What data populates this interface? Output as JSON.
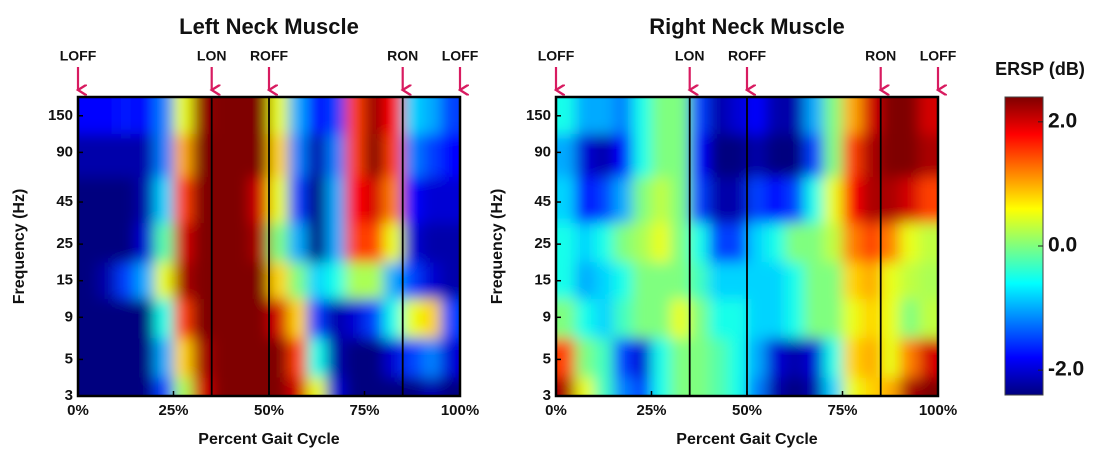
{
  "chart_data": [
    {
      "type": "heatmap",
      "title": "Left Neck Muscle",
      "xlabel": "Percent Gait Cycle",
      "ylabel": "Frequency (Hz)",
      "xlim": [
        0,
        100
      ],
      "ylim": [
        3,
        195
      ],
      "log_y": true,
      "xticks": [
        {
          "value": 0,
          "label": "0%"
        },
        {
          "value": 25,
          "label": "25%"
        },
        {
          "value": 50,
          "label": "50%"
        },
        {
          "value": 75,
          "label": "75%"
        },
        {
          "value": 100,
          "label": "100%"
        }
      ],
      "yticks": [
        3,
        5,
        9,
        15,
        25,
        45,
        90,
        150
      ],
      "events": [
        {
          "label": "LOFF",
          "x": 0
        },
        {
          "label": "LON",
          "x": 35
        },
        {
          "label": "ROFF",
          "x": 50
        },
        {
          "label": "RON",
          "x": 85
        },
        {
          "label": "LOFF",
          "x": 100
        }
      ],
      "x": [
        2.5,
        7.5,
        12.5,
        17.5,
        22.5,
        27.5,
        32.5,
        37.5,
        42.5,
        47.5,
        52.5,
        57.5,
        62.5,
        67.5,
        72.5,
        77.5,
        82.5,
        87.5,
        92.5,
        97.5
      ],
      "y": [
        150,
        90,
        45,
        25,
        15,
        9,
        5,
        3
      ],
      "z": [
        [
          -1.8,
          -1.8,
          -1.7,
          -1.8,
          -1.2,
          0.5,
          2.3,
          2.4,
          2.4,
          2.4,
          0.5,
          -1.0,
          -1.8,
          -1.5,
          1.5,
          2.3,
          1.8,
          -0.8,
          -1.0,
          -1.5
        ],
        [
          -2.2,
          -2.2,
          -2.2,
          -2.2,
          -1.2,
          1.0,
          2.4,
          2.4,
          2.4,
          2.4,
          0.8,
          -1.2,
          -2.2,
          -1.2,
          1.5,
          2.4,
          1.5,
          -1.2,
          -1.5,
          -1.8
        ],
        [
          -2.4,
          -2.4,
          -2.4,
          -2.2,
          -0.8,
          1.5,
          2.4,
          2.4,
          2.4,
          2.0,
          0.5,
          -1.5,
          -2.4,
          -1.0,
          1.8,
          2.0,
          1.2,
          -1.8,
          -2.0,
          -2.0
        ],
        [
          -2.4,
          -2.4,
          -2.4,
          -2.0,
          -0.2,
          2.0,
          2.4,
          2.4,
          2.4,
          2.2,
          0.0,
          -1.0,
          -2.4,
          -1.0,
          1.5,
          1.5,
          0.5,
          -2.0,
          -2.2,
          -2.2
        ],
        [
          -2.4,
          -2.2,
          -1.5,
          -1.0,
          0.5,
          2.2,
          2.4,
          2.4,
          2.4,
          2.4,
          0.8,
          0.0,
          -0.8,
          -0.5,
          0.2,
          0.2,
          -1.0,
          -1.5,
          -2.0,
          -2.2
        ],
        [
          -2.4,
          -2.4,
          -2.4,
          -2.4,
          -0.5,
          1.5,
          2.4,
          2.4,
          2.4,
          2.4,
          2.0,
          0.8,
          -1.5,
          -2.2,
          -2.0,
          -1.5,
          -0.5,
          0.5,
          0.8,
          -1.5
        ],
        [
          -2.4,
          -2.4,
          -2.4,
          -2.4,
          -1.0,
          0.8,
          2.2,
          2.4,
          2.4,
          2.4,
          2.4,
          1.5,
          -0.5,
          -2.2,
          -2.4,
          -2.4,
          -2.0,
          -1.5,
          -1.2,
          -2.0
        ],
        [
          -2.4,
          -2.4,
          -2.4,
          -2.4,
          -1.5,
          0.2,
          2.0,
          2.4,
          2.4,
          2.4,
          2.4,
          2.0,
          0.5,
          -2.0,
          -2.4,
          -2.4,
          -2.4,
          -2.4,
          -2.2,
          -2.4
        ]
      ]
    },
    {
      "type": "heatmap",
      "title": "Right Neck Muscle",
      "xlabel": "Percent Gait Cycle",
      "ylabel": "Frequency (Hz)",
      "xlim": [
        0,
        100
      ],
      "ylim": [
        3,
        195
      ],
      "log_y": true,
      "xticks": [
        {
          "value": 0,
          "label": "0%"
        },
        {
          "value": 25,
          "label": "25%"
        },
        {
          "value": 50,
          "label": "50%"
        },
        {
          "value": 75,
          "label": "75%"
        },
        {
          "value": 100,
          "label": "100%"
        }
      ],
      "yticks": [
        3,
        5,
        9,
        15,
        25,
        45,
        90,
        150
      ],
      "events": [
        {
          "label": "LOFF",
          "x": 0
        },
        {
          "label": "LON",
          "x": 35
        },
        {
          "label": "ROFF",
          "x": 50
        },
        {
          "label": "RON",
          "x": 85
        },
        {
          "label": "LOFF",
          "x": 100
        }
      ],
      "x": [
        2.5,
        7.5,
        12.5,
        17.5,
        22.5,
        27.5,
        32.5,
        37.5,
        42.5,
        47.5,
        52.5,
        57.5,
        62.5,
        67.5,
        72.5,
        77.5,
        82.5,
        87.5,
        92.5,
        97.5
      ],
      "y": [
        150,
        90,
        45,
        25,
        15,
        9,
        5,
        3
      ],
      "z": [
        [
          -0.5,
          -1.0,
          -1.0,
          -1.2,
          -0.5,
          0.0,
          0.0,
          -1.5,
          -2.2,
          -2.0,
          -1.8,
          -2.2,
          -2.2,
          -1.0,
          0.0,
          1.0,
          2.0,
          2.4,
          2.4,
          2.0
        ],
        [
          -1.0,
          -2.0,
          -2.2,
          -1.8,
          -0.5,
          0.0,
          0.0,
          -1.8,
          -2.4,
          -2.4,
          -2.2,
          -2.4,
          -2.4,
          -1.5,
          0.0,
          1.5,
          2.2,
          2.4,
          2.4,
          2.2
        ],
        [
          -0.8,
          -1.8,
          -1.5,
          -1.0,
          0.0,
          0.3,
          0.0,
          -1.5,
          -2.2,
          -2.2,
          -1.5,
          -1.8,
          -1.5,
          -0.5,
          0.5,
          1.8,
          2.2,
          2.2,
          2.0,
          1.5
        ],
        [
          -0.5,
          -0.8,
          -0.5,
          0.0,
          0.2,
          0.5,
          0.0,
          -0.5,
          -1.5,
          -1.5,
          -0.8,
          -0.5,
          0.0,
          0.0,
          0.3,
          1.2,
          1.5,
          1.2,
          0.5,
          0.3
        ],
        [
          -0.5,
          -1.0,
          -0.8,
          -0.5,
          0.0,
          0.0,
          0.0,
          -0.3,
          -0.8,
          -0.8,
          -0.8,
          -0.8,
          -0.5,
          0.0,
          0.0,
          0.8,
          1.0,
          0.5,
          0.3,
          0.2
        ],
        [
          0.0,
          -0.5,
          -0.8,
          -0.3,
          0.0,
          0.0,
          0.5,
          0.0,
          -0.5,
          -0.5,
          -0.8,
          -0.8,
          -0.5,
          0.0,
          0.0,
          0.5,
          0.8,
          0.5,
          0.0,
          0.3
        ],
        [
          1.5,
          0.0,
          -0.3,
          -1.5,
          -2.0,
          -0.5,
          0.0,
          0.0,
          -0.2,
          -0.5,
          -1.0,
          -2.0,
          -2.2,
          -2.0,
          -0.5,
          0.8,
          1.0,
          0.5,
          1.2,
          2.0
        ],
        [
          2.2,
          0.5,
          -0.3,
          -1.2,
          -1.5,
          -0.5,
          0.0,
          0.0,
          -0.2,
          -0.5,
          -1.2,
          -2.2,
          -2.4,
          -2.2,
          -0.8,
          0.5,
          0.8,
          1.0,
          2.2,
          2.4
        ]
      ]
    }
  ],
  "colorbar": {
    "label": "ERSP (dB)",
    "clim": [
      -2.4,
      2.4
    ],
    "ticks": [
      {
        "value": 2,
        "label": "2.0"
      },
      {
        "value": 0,
        "label": "0.0"
      },
      {
        "value": -2,
        "label": "-2.0"
      }
    ]
  }
}
